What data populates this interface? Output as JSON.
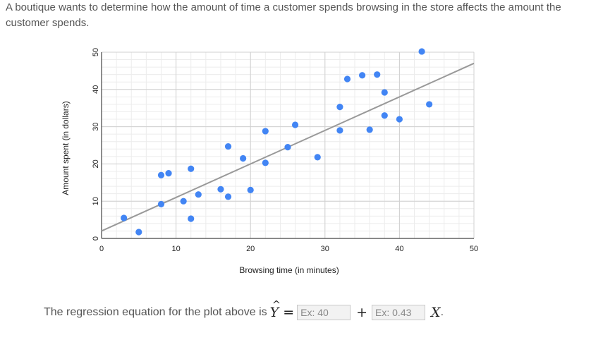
{
  "question": {
    "text": "A boutique wants to determine how the amount of time a customer spends browsing in the store affects the amount the customer spends."
  },
  "chart_data": {
    "type": "scatter",
    "title": "",
    "xlabel": "Browsing time (in minutes)",
    "ylabel": "Amount spent (in dollars)",
    "xlim": [
      0,
      50
    ],
    "ylim": [
      0,
      50
    ],
    "xticks": [
      0,
      10,
      20,
      30,
      40,
      50
    ],
    "yticks": [
      0,
      10,
      20,
      30,
      40,
      50
    ],
    "grid": true,
    "point_color": "#4285f4",
    "line_color": "#999999",
    "points": [
      {
        "x": 3,
        "y": 5.5
      },
      {
        "x": 5,
        "y": 1.7
      },
      {
        "x": 8,
        "y": 17
      },
      {
        "x": 8,
        "y": 9.2
      },
      {
        "x": 9,
        "y": 17.5
      },
      {
        "x": 11,
        "y": 10
      },
      {
        "x": 12,
        "y": 18.7
      },
      {
        "x": 12,
        "y": 5.3
      },
      {
        "x": 13,
        "y": 11.8
      },
      {
        "x": 16,
        "y": 13.2
      },
      {
        "x": 17,
        "y": 24.7
      },
      {
        "x": 17,
        "y": 11.2
      },
      {
        "x": 19,
        "y": 21.5
      },
      {
        "x": 20,
        "y": 13
      },
      {
        "x": 22,
        "y": 28.8
      },
      {
        "x": 22,
        "y": 20.3
      },
      {
        "x": 25,
        "y": 24.5
      },
      {
        "x": 26,
        "y": 30.5
      },
      {
        "x": 29,
        "y": 21.8
      },
      {
        "x": 32,
        "y": 35.3
      },
      {
        "x": 32,
        "y": 29
      },
      {
        "x": 33,
        "y": 42.8
      },
      {
        "x": 35,
        "y": 43.8
      },
      {
        "x": 36,
        "y": 29.2
      },
      {
        "x": 37,
        "y": 44
      },
      {
        "x": 38,
        "y": 39.2
      },
      {
        "x": 38,
        "y": 33
      },
      {
        "x": 40,
        "y": 32
      },
      {
        "x": 43,
        "y": 50.2
      },
      {
        "x": 44,
        "y": 36
      }
    ],
    "trendline": {
      "x": [
        0,
        50
      ],
      "y": [
        2,
        47
      ]
    }
  },
  "equation": {
    "prefix": "The regression equation for the plot above is",
    "yhat": "Y",
    "hat": "^",
    "equals": "=",
    "plus": "+",
    "xvar": "X",
    "period": ".",
    "intercept_placeholder": "Ex: 40",
    "slope_placeholder": "Ex: 0.43"
  }
}
